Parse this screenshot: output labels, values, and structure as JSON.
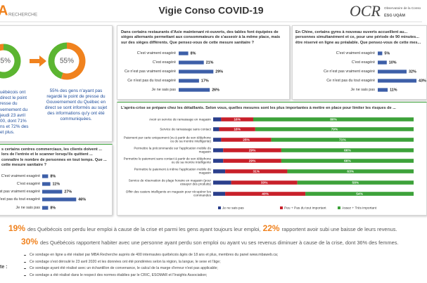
{
  "header": {
    "logo_left_mark": "A",
    "logo_left": "RECHERCHE",
    "title": "Vigie Conso COVID-19",
    "logo_right": "OCR",
    "logo_right_sub": "Observatoire de la Conso",
    "logo_right_org": "ESG UQÀM"
  },
  "left_panel": {
    "text_left": [
      "uébécois ont",
      "direct le point",
      "resse du",
      "vernement du",
      "jeudi 23 avril",
      "00, dont 71%",
      "ns et 72% des",
      "et plus."
    ],
    "text_right": "55% des gens n'ayant pas regardé le point de presse du Gouvernement du Québec en direct se sont informés au sujet des informations qu'y ont été communiquées."
  },
  "chart_data": [
    {
      "type": "donut",
      "values": [
        55
      ],
      "value_labels": [
        "55%"
      ],
      "color": "#5cb531",
      "rest_color": "#f0821e"
    },
    {
      "type": "donut",
      "values": [
        55
      ],
      "value_labels": [
        "55%"
      ],
      "color": "#f0821e",
      "rest_color": "#5cb531"
    },
    {
      "type": "hbar",
      "title": "Dans certains restaurants d'Asie maintenant ré-ouverts, des tables font équipées de sièges alternants permettant aux consommateurs de s'asseoir à la même place, mais sur des sièges différents. Que pensez-vous de cette mesure sanitaire ?",
      "categories": [
        "C'est vraiment exagéré",
        "C'est exagéré",
        "Ce n'est pas vraiment exagéré",
        "Ce n'est pas du tout exagéré",
        "Je ne sais pas"
      ],
      "values": [
        8,
        21,
        29,
        17,
        26
      ],
      "value_labels": [
        "8%",
        "21%",
        "29%",
        "17%",
        "26%"
      ],
      "color": "#3d5fa8"
    },
    {
      "type": "hbar",
      "title": "En Chine, certains gyms à nouveau ouverts accueillent au... personnes simultanément et ce, pour une période de 90 minutes... être réservé en ligne au préalable. Que pensez-vous de cette mes...",
      "categories": [
        "C'est vraiment exagéré",
        "C'est exagéré",
        "Ce n'est pas vraiment exagéré",
        "Ce n'est pas du tout exagéré",
        "Je ne sais pas"
      ],
      "values": [
        5,
        10,
        32,
        43,
        11
      ],
      "value_labels": [
        "5%",
        "10%",
        "32%",
        "43%",
        "11%"
      ],
      "color": "#3d5fa8"
    },
    {
      "type": "hbar",
      "title": "s certains centres commerciaux, les clients doivent ... lors de l'entrée et le scanner lorsqu'ils quittent ... connaître le nombre de personnes en tout temps. Que ... cette mesure sanitaire ?",
      "categories": [
        "C'est vraiment exagéré",
        "C'est exagéré",
        "Ce n'est pas vraiment exagéré",
        "Ce n'est pas du tout exagéré",
        "Je ne sais pas"
      ],
      "values": [
        8,
        11,
        27,
        46,
        8
      ],
      "value_labels": [
        "8%",
        "11%",
        "27%",
        "46%",
        "8%"
      ],
      "color": "#3d5fa8"
    },
    {
      "type": "stacked_hbar",
      "title": "L'après-crise se prépare chez les détaillants. Selon vous, quelles mesures sont les plus importantes à mettre en place pour limiter les risques de ...",
      "categories": [
        "Avoir un service de ramassage en magasin",
        "Service de ramassage sans contact",
        "Paiement par carte uniquement (ou à partir de son téléphone ou de sa montre intelligente)",
        "Permettre la précommande sur l'application mobile du magasin",
        "Permettre le paiement sans contact à partir de son téléphone ou de sa montre intelligente",
        "Permettre le paiement à même l'application mobile du magasin",
        "Service de réservation de plage horaire en magasin (pour essayer des produits)",
        "Offrir des casiers intelligents en magasin pour récupérer les commandes"
      ],
      "series": [
        {
          "name": "Je ne sais pas",
          "color": "#2b3f8c",
          "values": [
            4,
            3,
            4,
            5,
            5,
            6,
            9,
            6
          ]
        },
        {
          "name": "Peu + Pas du tout important",
          "color": "#c8202a",
          "values": [
            16,
            18,
            25,
            29,
            29,
            31,
            33,
            40
          ],
          "value_labels": [
            "16%",
            "18%",
            "25%",
            "29%",
            "29%",
            "31%",
            "33%",
            "40%"
          ]
        },
        {
          "name": "Assez + Très important",
          "color": "#3da23a",
          "values": [
            80,
            79,
            71,
            66,
            66,
            63,
            58,
            54
          ],
          "value_labels": [
            "80%",
            "79%",
            "71%",
            "66%",
            "66%",
            "63%",
            "58%",
            "54%"
          ]
        }
      ],
      "legend": "bottom"
    }
  ],
  "stats": [
    {
      "parts": [
        "19%",
        "des Québécois ont perdu leur emploi à cause de la crise et parmi les gens ayant toujours leur emploi,",
        "22%",
        "rapportent avoir subi une baisse de leurs revenus."
      ]
    },
    {
      "parts": [
        "30%",
        "des Québécois rapportent habiter avec une personne ayant perdu son emploi ou ayant vu ses revenus diminuer à cause de la crise, dont 36% des femmes."
      ]
    }
  ],
  "notes": {
    "label": "te :",
    "items": [
      "Ce sondage en ligne a été réalisé par MBA Recherche auprès de 400 internautes québécois âgés de 18 ans et plus, membres du panel www.mbaweb.ca;",
      "Ce sondage s'est déroulé le 23 avril 2020 et les données ont été pondérées selon la région, la langue, le sexe et l'âge;",
      "Ce sondage ayant été réalisé avec un échantillon de convenance, le calcul de la marge d'erreur n'est pas applicable;",
      "Ce sondage a été réalisé dans le respect des normes établies par le CRIC, ESOMAR et l'Insights Association;"
    ]
  }
}
